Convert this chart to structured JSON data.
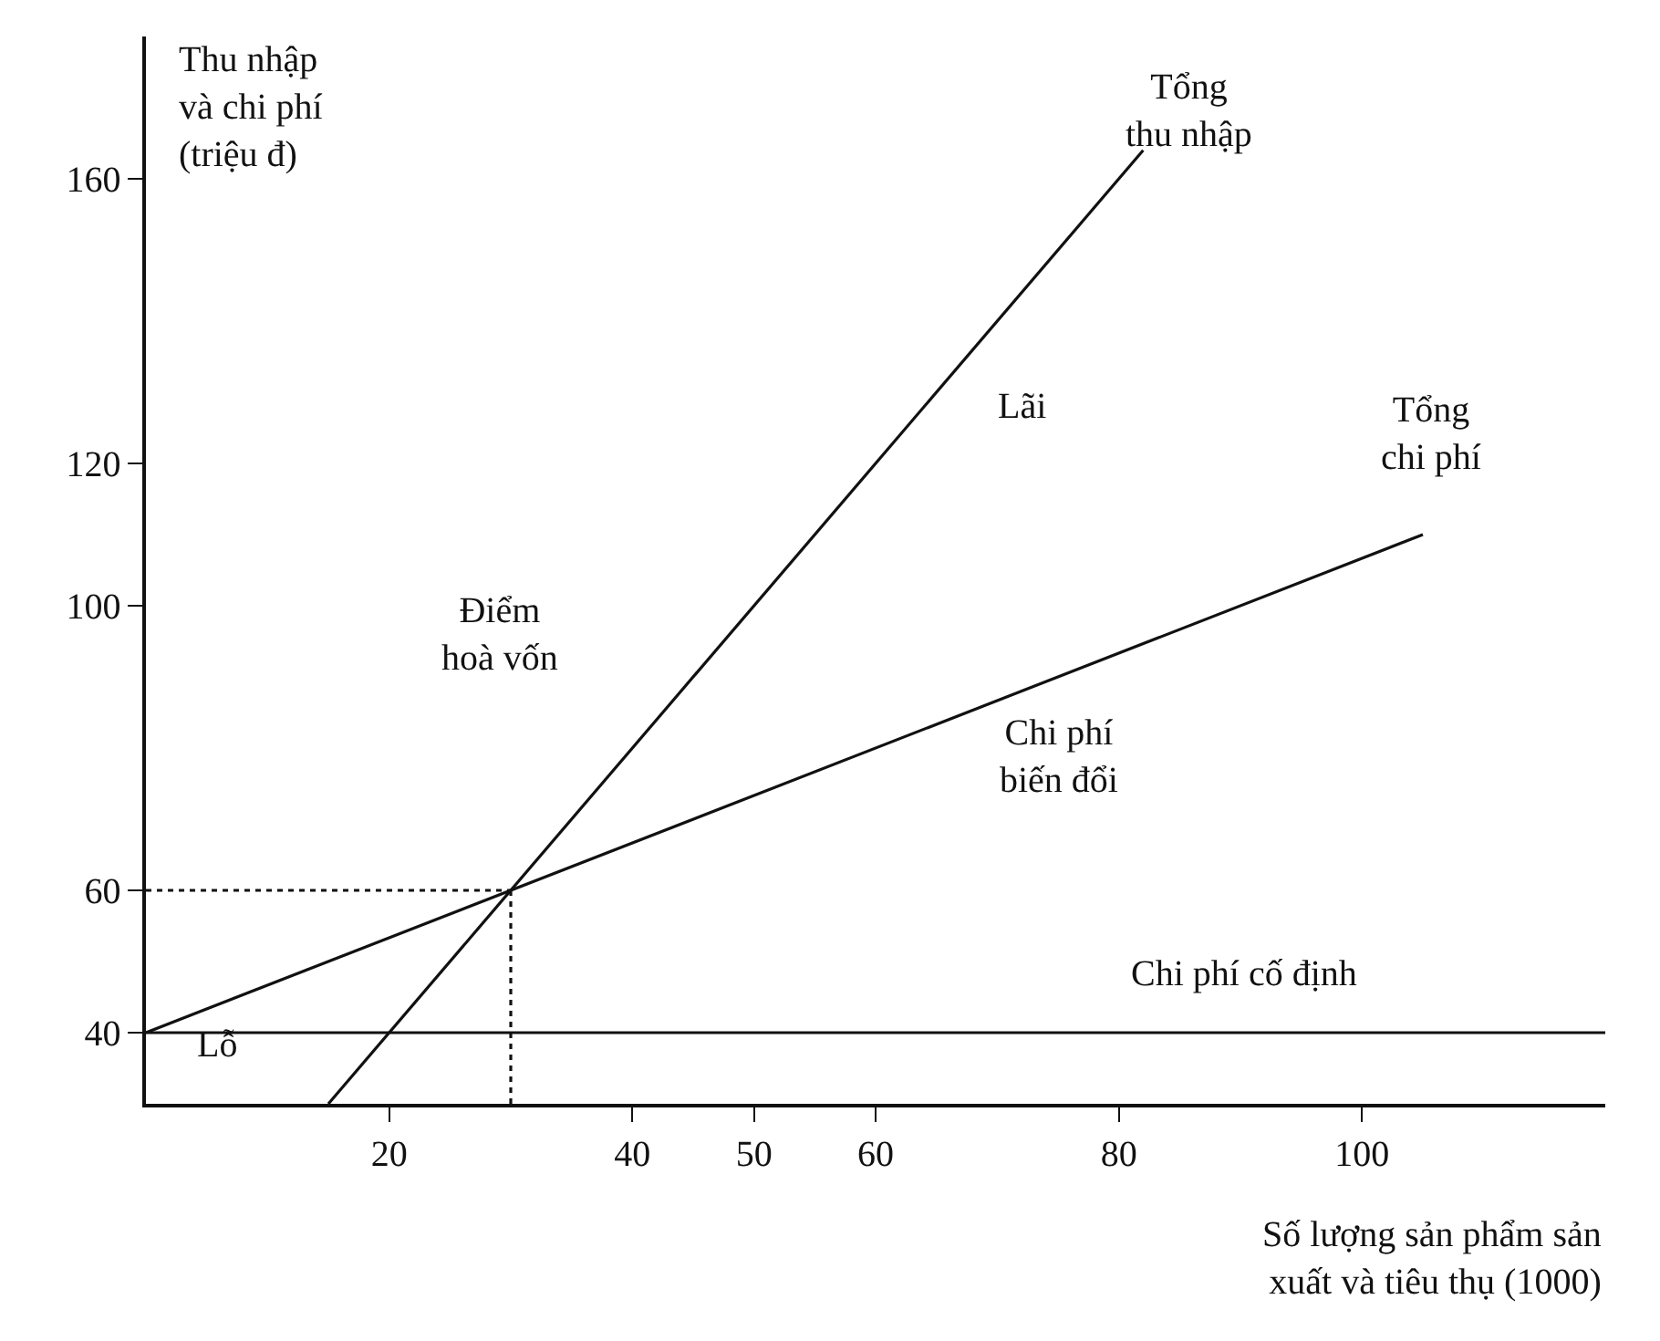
{
  "chart_data": {
    "type": "line",
    "xlabel": "Số lượng sản phẩm sản\nxuất và tiêu thụ (1000)",
    "ylabel": "Thu nhập\nvà chi phí\n(triệu đ)",
    "xlim": [
      0,
      120
    ],
    "ylim": [
      30,
      180
    ],
    "xticks": [
      20,
      40,
      50,
      60,
      80,
      100
    ],
    "yticks": [
      40,
      60,
      100,
      120,
      160
    ],
    "marker": "none",
    "series": [
      {
        "color": "#111111",
        "x": [
          15,
          82
        ],
        "values": [
          30,
          164
        ]
      },
      {
        "color": "#111111",
        "x": [
          0,
          105
        ],
        "values": [
          40,
          110
        ]
      },
      {
        "color": "#111111",
        "x": [
          0,
          120
        ],
        "values": [
          40,
          40
        ]
      },
      {
        "color": "#111111",
        "x": [
          30,
          30
        ],
        "values": [
          30,
          60
        ],
        "line_style": "dotted"
      },
      {
        "color": "#111111",
        "x": [
          0,
          30
        ],
        "values": [
          60,
          60
        ],
        "line_style": "dotted"
      }
    ],
    "annotations": [
      "Tổng\nthu nhập",
      "Tổng\nchi phí",
      "Lãi",
      "Điểm\nhoà vốn",
      "Chi phí\nbiến đổi",
      "Chi phí cố định",
      "Lỗ"
    ]
  }
}
